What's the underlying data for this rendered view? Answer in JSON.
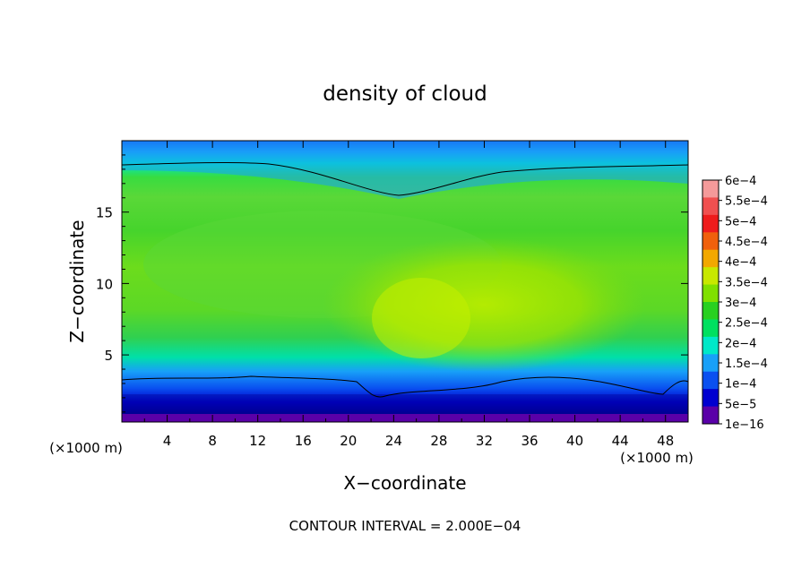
{
  "chart_data": {
    "type": "heatmap",
    "title": "density of cloud",
    "xlabel": "X−coordinate",
    "ylabel": "Z−coordinate",
    "x_unit_left": "(×1000 m)",
    "x_unit_right": "(×1000 m)",
    "xlim": [
      0,
      50
    ],
    "ylim": [
      0.3,
      20
    ],
    "x_ticks": [
      4,
      8,
      12,
      16,
      20,
      24,
      28,
      32,
      36,
      40,
      44,
      48
    ],
    "y_ticks": [
      5,
      10,
      15
    ],
    "colorbar": {
      "labels": [
        "6e−4",
        "5.5e−4",
        "5e−4",
        "4.5e−4",
        "4e−4",
        "3.5e−4",
        "3e−4",
        "2.5e−4",
        "2e−4",
        "1.5e−4",
        "1e−4",
        "5e−5",
        "1e−16"
      ],
      "colors": [
        "#f49a9a",
        "#f05050",
        "#ee1c1c",
        "#f0600c",
        "#f2a800",
        "#c8e800",
        "#80e000",
        "#28d020",
        "#00e060",
        "#00e8c8",
        "#18a0f8",
        "#0a50f0",
        "#0000d0",
        "#5a00a8"
      ]
    },
    "contour_interval_label": "CONTOUR INTERVAL = 2.000E−04"
  }
}
